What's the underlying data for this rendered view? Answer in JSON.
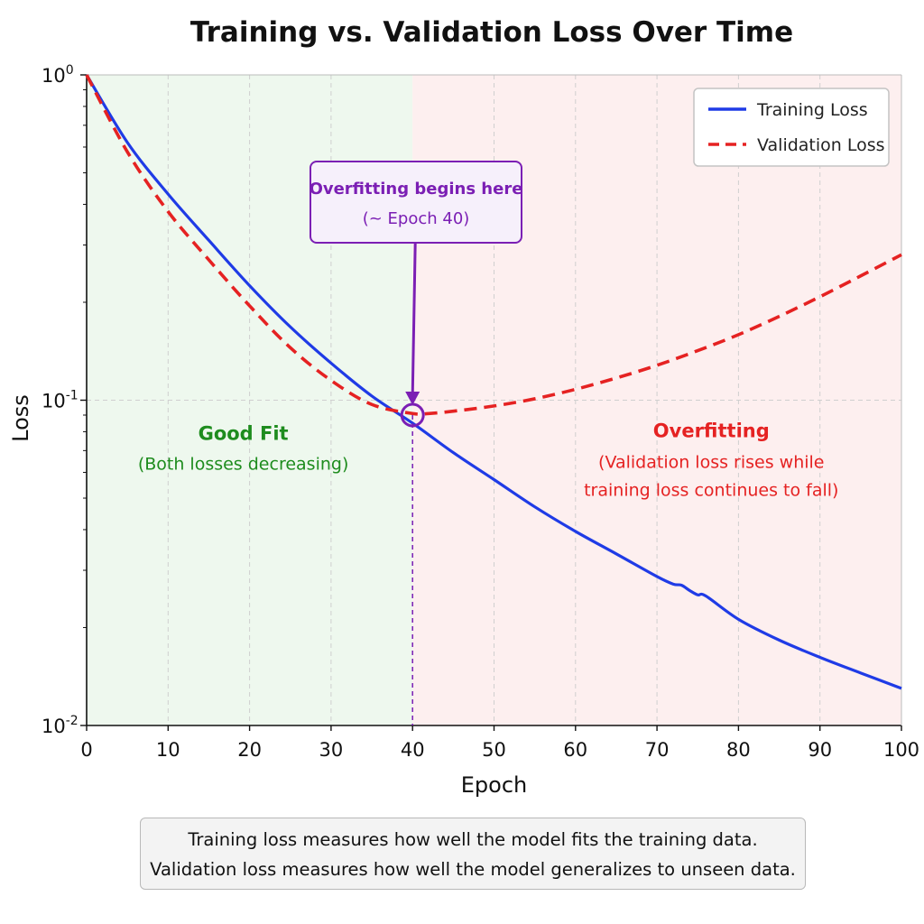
{
  "chart_data": {
    "type": "line",
    "title": "Training vs. Validation Loss Over Time",
    "xlabel": "Epoch",
    "ylabel": "Loss",
    "xlim": [
      0,
      100
    ],
    "ylim": [
      0.01,
      1
    ],
    "yscale": "log",
    "xticks": [
      "0",
      "10",
      "20",
      "30",
      "40",
      "50",
      "60",
      "70",
      "80",
      "90",
      "100"
    ],
    "yticks": [
      {
        "value": 1,
        "base": "10",
        "exp": "0"
      },
      {
        "value": 0.1,
        "base": "10",
        "exp": "-1"
      },
      {
        "value": 0.01,
        "base": "10",
        "exp": "-2"
      }
    ],
    "grid": true,
    "legend_position": "top-right",
    "series": [
      {
        "name": "Training Loss",
        "color": "#1f3be6",
        "style": "solid",
        "x": [
          0,
          5,
          10,
          15,
          20,
          25,
          30,
          35,
          40,
          45,
          50,
          55,
          60,
          65,
          70,
          72,
          73,
          74,
          75,
          76,
          80,
          85,
          90,
          95,
          100
        ],
        "y": [
          1.0,
          0.62,
          0.43,
          0.31,
          0.225,
          0.168,
          0.13,
          0.103,
          0.085,
          0.069,
          0.057,
          0.047,
          0.0395,
          0.0337,
          0.0287,
          0.0272,
          0.027,
          0.026,
          0.0252,
          0.025,
          0.0212,
          0.0183,
          0.0162,
          0.0145,
          0.013
        ]
      },
      {
        "name": "Validation Loss",
        "color": "#e52222",
        "style": "dashed",
        "x": [
          0,
          5,
          10,
          15,
          20,
          25,
          30,
          35,
          40,
          42,
          45,
          50,
          55,
          60,
          65,
          70,
          75,
          80,
          85,
          90,
          95,
          100
        ],
        "y": [
          1.0,
          0.58,
          0.38,
          0.27,
          0.195,
          0.145,
          0.115,
          0.097,
          0.091,
          0.091,
          0.0925,
          0.096,
          0.101,
          0.108,
          0.117,
          0.128,
          0.142,
          0.159,
          0.181,
          0.208,
          0.241,
          0.28
        ]
      }
    ],
    "regions": [
      {
        "name": "good-fit",
        "x_start": 0,
        "x_end": 40,
        "color": "#eef8ee",
        "title": "Good Fit",
        "subtitle": "(Both losses decreasing)",
        "text_color": "#1e8c1e",
        "label_x": 20,
        "label_y": 0.064
      },
      {
        "name": "overfitting",
        "x_start": 40,
        "x_end": 100,
        "color": "#fdefef",
        "title": "Overfitting",
        "subtitle_lines": [
          "(Validation loss rises while",
          "training loss continues to fall)"
        ],
        "text_color": "#e52222",
        "label_x": 76,
        "label_y": 0.081
      }
    ],
    "annotation": {
      "line1": "Overfitting begins here",
      "line2": "(~ Epoch 40)",
      "x": 40,
      "y": 0.09,
      "color": "#7b1fb4",
      "box_fill": "#f6f0fb"
    }
  },
  "note": {
    "line1": "Training loss measures how well the model fits the training data.",
    "line2": "Validation loss measures how well the model generalizes to unseen data."
  }
}
